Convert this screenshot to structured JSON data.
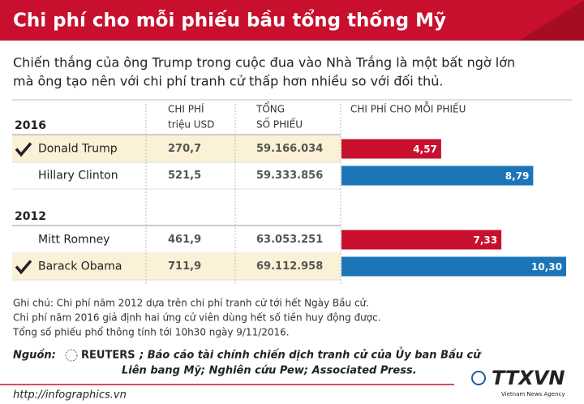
{
  "header": {
    "title": "Chi phí cho mỗi phiếu bầu tổng thống Mỹ"
  },
  "intro": [
    "Chiến thắng của ông Trump trong cuộc đua vào Nhà Trắng là một bất ngờ lớn",
    "mà ông tạo nên với chi phí tranh cử thấp hơn nhiều so với đối thủ."
  ],
  "table": {
    "columns": [
      {
        "line1": "CHI PHÍ",
        "line2": "triệu USD"
      },
      {
        "line1": "TỔNG",
        "line2": "SỐ PHIẾU"
      },
      {
        "line1": "CHI PHÍ CHO MỖI PHIẾU"
      }
    ],
    "groups": [
      {
        "year": "2016",
        "rows": [
          {
            "winner": true,
            "cost": "270,7",
            "votes": "59.166.034"
          },
          {
            "winner": false,
            "cost": "521,5",
            "votes": "59.333.856"
          }
        ]
      },
      {
        "year": "2012",
        "rows": [
          {
            "winner": false,
            "cost": "461,9",
            "votes": "63.053.251"
          },
          {
            "winner": true,
            "cost": "711,9",
            "votes": "69.112.958"
          }
        ]
      }
    ]
  },
  "chart_data": {
    "type": "bar",
    "orientation": "horizontal",
    "categories": [
      "Donald Trump",
      "Hillary Clinton",
      "Mitt Romney",
      "Barack Obama"
    ],
    "values": [
      4.57,
      8.79,
      7.33,
      10.3
    ],
    "value_labels": [
      "4,57",
      "8,79",
      "7,33",
      "10,30"
    ],
    "colors": [
      "#c8102e",
      "#1b75b6",
      "#c8102e",
      "#1b75b6"
    ]
  },
  "notes": [
    "Ghi chú: Chi phí năm 2012 dựa trên chi phí tranh cử tới hết Ngày Bầu cử.",
    "Chi phí năm 2016 giả định hai ứng cử viên dùng hết số tiền huy động được.",
    "Tổng số phiếu phổ thông tính tới 10h30 ngày 9/11/2016."
  ],
  "source": {
    "label": "Nguồn:",
    "agency": "REUTERS",
    "line1": "; Báo cáo tài chính chiến dịch tranh cử của Ủy ban Bầu cử",
    "line2": "Liên bang Mỹ; Nghiên cứu Pew; Associated Press."
  },
  "footer": {
    "url": "http://infographics.vn",
    "logo": "TTXVN",
    "logo_sub": "Vietnam News Agency"
  }
}
